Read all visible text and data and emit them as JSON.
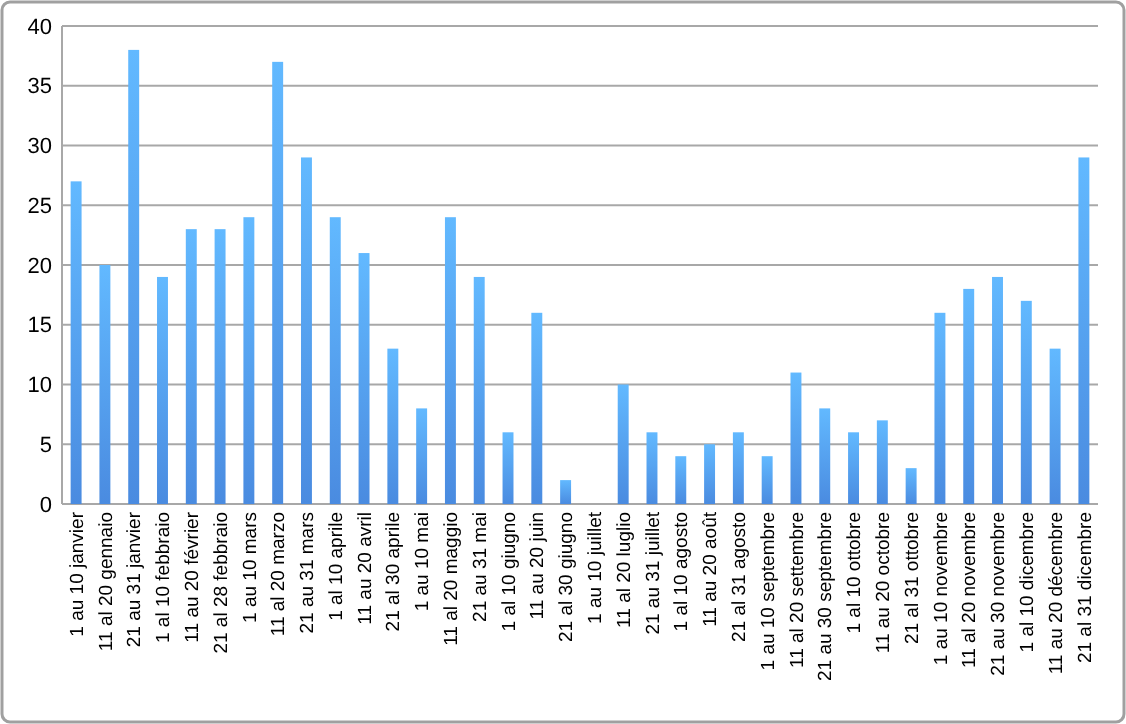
{
  "chart_data": {
    "type": "bar",
    "categories": [
      "1 au 10 janvier",
      "11 al 20 gennaio",
      "21 au 31 janvier",
      "1 al 10 febbraio",
      "11 au 20 février",
      "21 al 28 febbraio",
      "1 au 10 mars",
      "11 al 20 marzo",
      "21 au 31 mars",
      "1 al 10 aprile",
      "11 au 20 avril",
      "21 al 30 aprile",
      "1 au 10 mai",
      "11 al 20 maggio",
      "21 au 31 mai",
      "1 al 10 giugno",
      "11 au 20 juin",
      "21 al 30 giugno",
      "1 au 10 juillet",
      "11 al 20 luglio",
      "21 au 31 juillet",
      "1 al 10 agosto",
      "11 au 20 août",
      "21 al 31 agosto",
      "1 au 10 septembre",
      "11 al 20 settembre",
      "21 au 30 septembre",
      "1 al 10 ottobre",
      "11 au 20 octobre",
      "21 al 31 ottobre",
      "1 au 10 novembre",
      "11 al 20 novembre",
      "21 au 30 novembre",
      "1 al 10 dicembre",
      "11 au 20 décembre",
      "21 al 31 dicembre"
    ],
    "values": [
      27,
      20,
      38,
      19,
      23,
      23,
      24,
      37,
      29,
      24,
      21,
      13,
      8,
      24,
      19,
      6,
      16,
      2,
      0,
      10,
      6,
      4,
      5,
      6,
      4,
      11,
      8,
      6,
      7,
      3,
      16,
      18,
      19,
      17,
      13,
      29
    ],
    "color": "#4a8be0",
    "ylim": [
      0,
      40
    ],
    "yticks": [
      0,
      5,
      10,
      15,
      20,
      25,
      30,
      35,
      40
    ],
    "grid": "y"
  }
}
